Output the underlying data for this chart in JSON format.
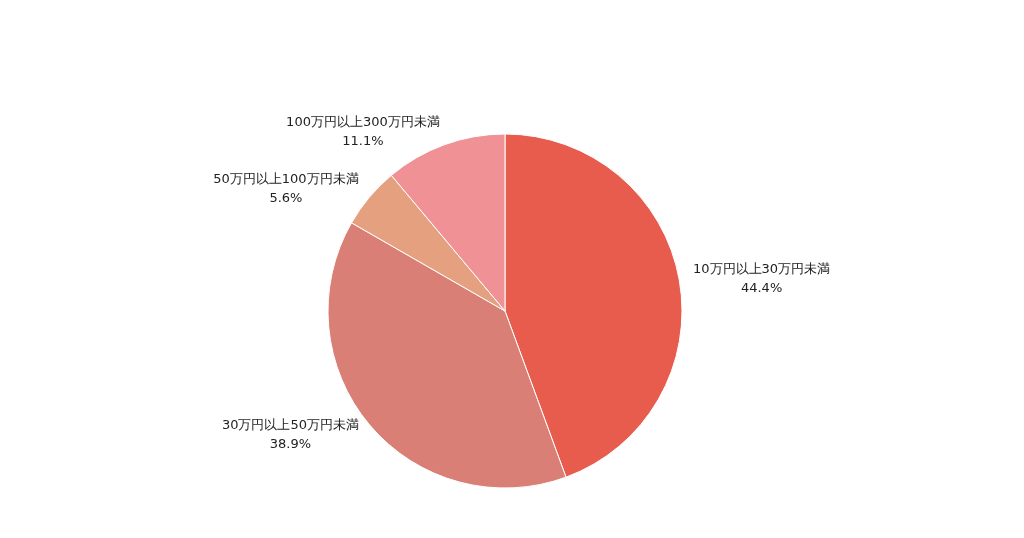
{
  "chart_data": {
    "type": "pie",
    "categories": [
      "10万円以上30万円未満",
      "30万円以上50万円未満",
      "50万円以上100万円未満",
      "100万円以上300万円未満"
    ],
    "values": [
      44.4,
      38.9,
      5.6,
      11.1
    ],
    "colors": [
      "#e85c4e",
      "#d97f76",
      "#e5a07f",
      "#f09295"
    ],
    "value_labels": [
      "44.4%",
      "38.9%",
      "5.6%",
      "11.1%"
    ]
  }
}
